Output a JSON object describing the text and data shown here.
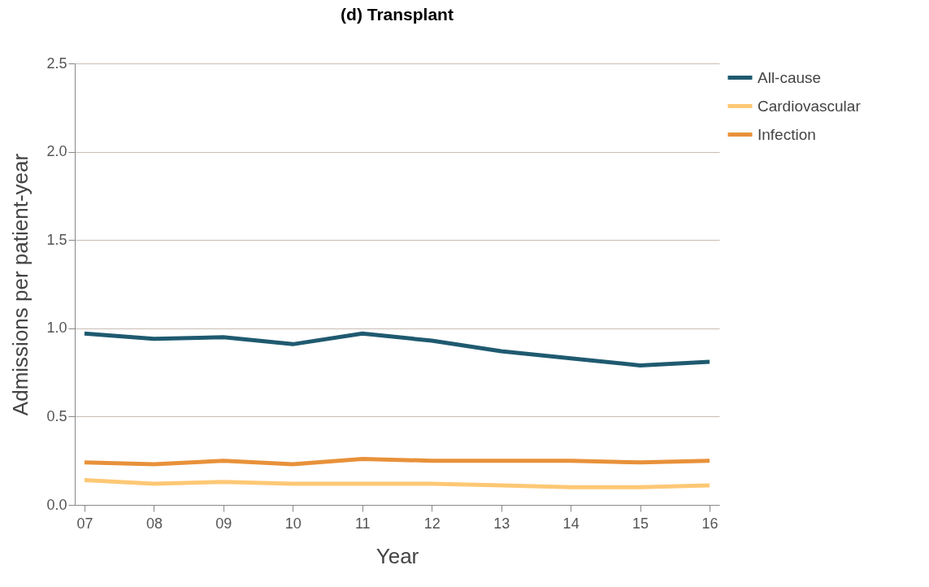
{
  "chart_data": {
    "type": "line",
    "title": "(d) Transplant",
    "xlabel": "Year",
    "ylabel": "Admissions per patient-year",
    "categories": [
      "07",
      "08",
      "09",
      "10",
      "11",
      "12",
      "13",
      "14",
      "15",
      "16"
    ],
    "series": [
      {
        "name": "All-cause",
        "color": "#1f5a70",
        "values": [
          0.97,
          0.94,
          0.95,
          0.91,
          0.97,
          0.93,
          0.87,
          0.83,
          0.79,
          0.81
        ]
      },
      {
        "name": "Cardiovascular",
        "color": "#fdc875",
        "values": [
          0.14,
          0.12,
          0.13,
          0.12,
          0.12,
          0.12,
          0.11,
          0.1,
          0.1,
          0.11
        ]
      },
      {
        "name": "Infection",
        "color": "#e8913a",
        "values": [
          0.24,
          0.23,
          0.25,
          0.23,
          0.26,
          0.25,
          0.25,
          0.25,
          0.24,
          0.25
        ]
      }
    ],
    "ylim": [
      0,
      2.5
    ],
    "yticks": [
      {
        "value": 0,
        "label": "0.0"
      },
      0.5,
      {
        "value": 1,
        "label": "1.0"
      },
      1.5,
      {
        "value": 2,
        "label": "2.0"
      },
      2.5
    ],
    "grid": "y",
    "legend": "right"
  }
}
